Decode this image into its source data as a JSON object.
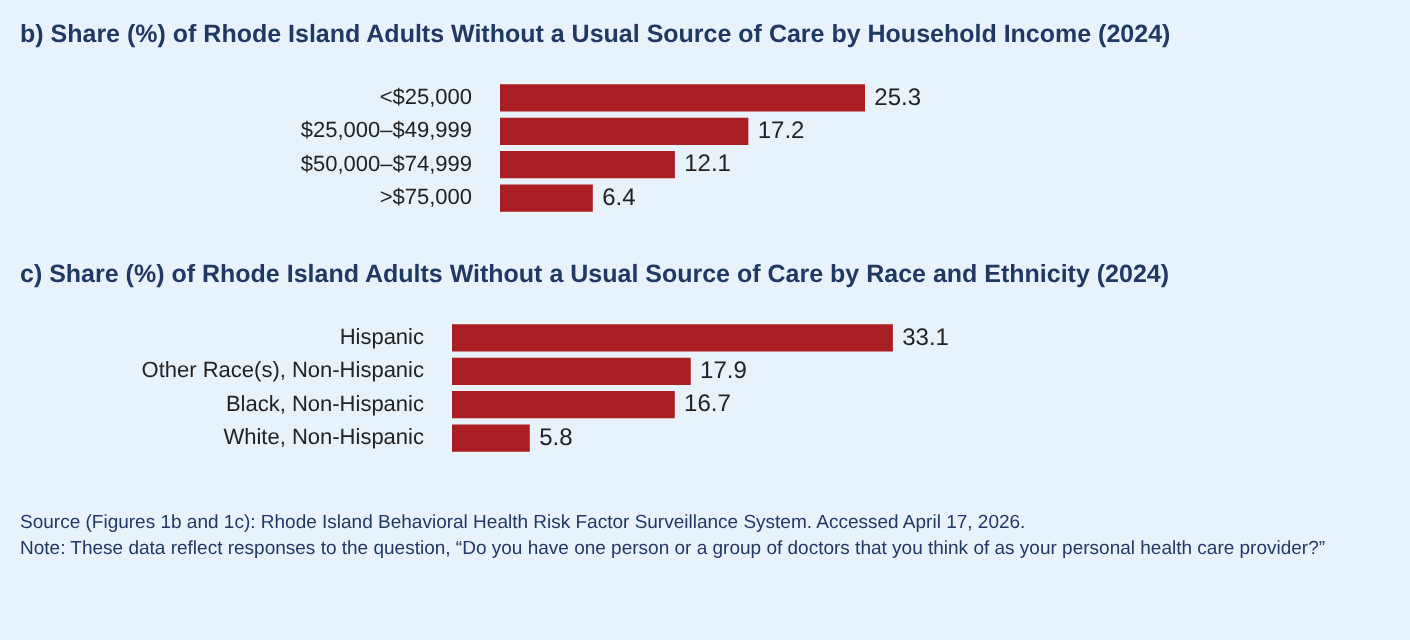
{
  "chart_data": [
    {
      "type": "bar",
      "orientation": "horizontal",
      "title": "b) Share (%) of Rhode Island Adults Without a Usual Source of Care by Household Income (2024)",
      "categories": [
        "<$25,000",
        "$25,000–$49,999",
        "$50,000–$74,999",
        ">$75,000"
      ],
      "values": [
        25.3,
        17.2,
        12.1,
        6.4
      ],
      "color": "#a91e22",
      "data_labels": true
    },
    {
      "type": "bar",
      "orientation": "horizontal",
      "title": "c) Share (%) of Rhode Island Adults Without a Usual Source of Care by Race and Ethnicity (2024)",
      "categories": [
        "Hispanic",
        "Other Race(s), Non-Hispanic",
        "Black, Non-Hispanic",
        "White, Non-Hispanic"
      ],
      "values": [
        33.1,
        17.9,
        16.7,
        5.8
      ],
      "color": "#a91e22",
      "data_labels": true,
      "annotations": [
        "Source (Figures 1b and 1c): Rhode Island Behavioral Health Risk Factor Surveillance System. Accessed April 17, 2026.",
        "Note: These data reflect responses to the question, “Do you have one person or a group of doctors that you think of as your personal health care provider?”"
      ]
    }
  ]
}
